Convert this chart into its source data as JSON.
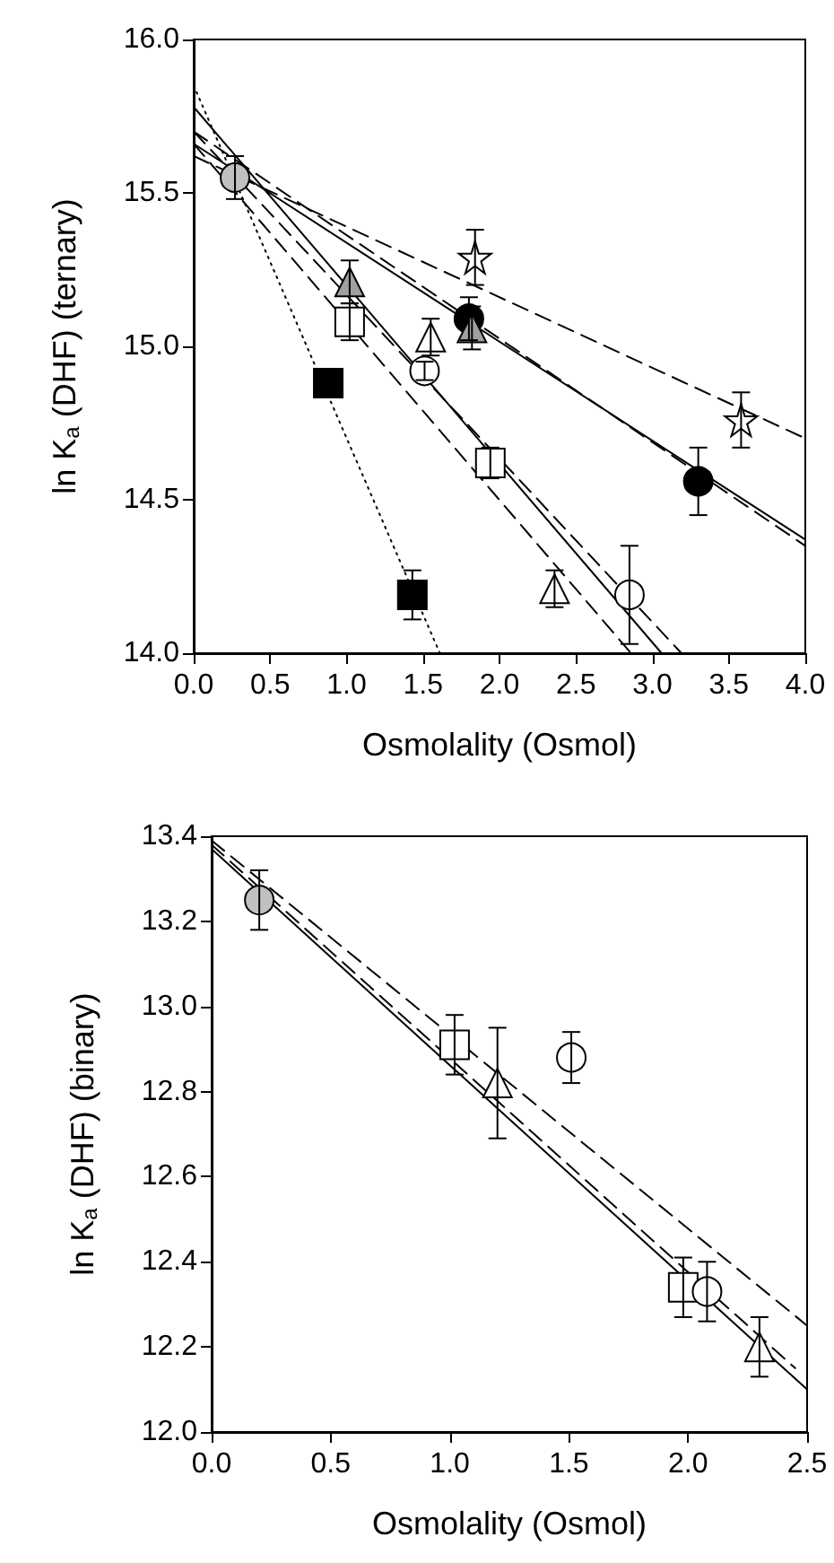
{
  "chart_data": [
    {
      "type": "scatter",
      "xlabel": "Osmolality (Osmol)",
      "ylabel": "ln K$_{a}$ (DHF) (ternary)",
      "xlim": [
        0,
        4
      ],
      "ylim": [
        14,
        16
      ],
      "xticks": [
        {
          "value": 0,
          "label": "0.0"
        },
        {
          "value": 0.5,
          "label": "0.5"
        },
        {
          "value": 1,
          "label": "1.0"
        },
        {
          "value": 1.5,
          "label": "1.5"
        },
        {
          "value": 2,
          "label": "2.0"
        },
        {
          "value": 2.5,
          "label": "2.5"
        },
        {
          "value": 3,
          "label": "3.0"
        },
        {
          "value": 3.5,
          "label": "3.5"
        },
        {
          "value": 4,
          "label": "4.0"
        }
      ],
      "yticks": [
        {
          "value": 14,
          "label": "14.0"
        },
        {
          "value": 14.5,
          "label": "14.5"
        },
        {
          "value": 15,
          "label": "15.0"
        },
        {
          "value": 15.5,
          "label": "15.5"
        },
        {
          "value": 16,
          "label": "16.0"
        }
      ],
      "grid": false,
      "series": [
        {
          "type": "line",
          "marker": "none",
          "line_style": "dotted",
          "color": "#000000",
          "x": [
            0,
            1.61
          ],
          "values": [
            15.85,
            14.0
          ]
        },
        {
          "type": "line",
          "marker": "none",
          "line_style": "dashed",
          "color": "#000000",
          "x": [
            0,
            4
          ],
          "values": [
            15.62,
            14.7
          ]
        },
        {
          "type": "line",
          "marker": "none",
          "line_style": "solid",
          "color": "#000000",
          "x": [
            0,
            4
          ],
          "values": [
            15.66,
            14.37
          ]
        },
        {
          "type": "line",
          "marker": "none",
          "line_style": "dashed",
          "color": "#000000",
          "x": [
            0,
            4
          ],
          "values": [
            15.7,
            14.35
          ]
        },
        {
          "type": "line",
          "marker": "none",
          "line_style": "solid",
          "color": "#000000",
          "x": [
            0,
            3.06
          ],
          "values": [
            15.78,
            14.0
          ]
        },
        {
          "type": "line",
          "marker": "none",
          "line_style": "dashed",
          "color": "#000000",
          "x": [
            0,
            2.86
          ],
          "values": [
            15.66,
            14.0
          ]
        },
        {
          "type": "line",
          "marker": "none",
          "line_style": "dashed",
          "color": "#000000",
          "x": [
            0,
            3.19
          ],
          "values": [
            15.7,
            14.0
          ]
        },
        {
          "marker": "square",
          "color": "#ffffff",
          "x": [
            1.02,
            1.94
          ],
          "values": [
            15.08,
            14.62
          ],
          "errors": [
            0.06,
            0.05
          ]
        },
        {
          "marker": "triangle",
          "color": "#ffffff",
          "x": [
            1.55,
            2.36
          ],
          "values": [
            15.03,
            14.21
          ],
          "errors": [
            0.06,
            0.06
          ]
        },
        {
          "marker": "circle",
          "color": "#ffffff",
          "x": [
            1.51,
            2.85
          ],
          "values": [
            14.92,
            14.19
          ],
          "errors": [
            0.03,
            0.16
          ]
        },
        {
          "marker": "square",
          "color": "#000000",
          "x": [
            0.88,
            1.43
          ],
          "values": [
            14.88,
            14.19
          ],
          "errors": [
            null,
            0.08
          ]
        },
        {
          "marker": "star",
          "color": "#ffffff",
          "x": [
            1.84,
            3.58
          ],
          "values": [
            15.29,
            14.76
          ],
          "errors": [
            0.09,
            0.09
          ]
        },
        {
          "marker": "circle",
          "color": "#000000",
          "x": [
            1.8,
            3.3
          ],
          "values": [
            15.09,
            14.56
          ],
          "errors": [
            0.07,
            0.11
          ]
        },
        {
          "marker": "triangle",
          "color": "#a0a0a0",
          "x": [
            1.02,
            1.82
          ],
          "values": [
            15.21,
            15.06
          ],
          "errors": [
            0.07,
            0.07
          ]
        },
        {
          "marker": "circle",
          "color": "#c0c0c0",
          "x": [
            0.27
          ],
          "values": [
            15.55
          ],
          "errors": [
            0.07
          ]
        }
      ]
    },
    {
      "type": "scatter",
      "xlabel": "Osmolality (Osmol)",
      "ylabel": "ln K$_{a}$ (DHF) (binary)",
      "xlim": [
        0,
        2.5
      ],
      "ylim": [
        12,
        13.4
      ],
      "xticks": [
        {
          "value": 0,
          "label": "0.0"
        },
        {
          "value": 0.5,
          "label": "0.5"
        },
        {
          "value": 1,
          "label": "1.0"
        },
        {
          "value": 1.5,
          "label": "1.5"
        },
        {
          "value": 2,
          "label": "2.0"
        },
        {
          "value": 2.5,
          "label": "2.5"
        }
      ],
      "yticks": [
        {
          "value": 12,
          "label": "12.0"
        },
        {
          "value": 12.2,
          "label": "12.2"
        },
        {
          "value": 12.4,
          "label": "12.4"
        },
        {
          "value": 12.6,
          "label": "12.6"
        },
        {
          "value": 12.8,
          "label": "12.8"
        },
        {
          "value": 13,
          "label": "13.0"
        },
        {
          "value": 13.2,
          "label": "13.2"
        },
        {
          "value": 13.4,
          "label": "13.4"
        }
      ],
      "grid": false,
      "series": [
        {
          "type": "line",
          "marker": "none",
          "line_style": "solid",
          "color": "#000000",
          "x": [
            0,
            2.5
          ],
          "values": [
            13.37,
            12.1
          ]
        },
        {
          "type": "line",
          "marker": "none",
          "line_style": "dashed",
          "color": "#000000",
          "x": [
            0,
            2.45
          ],
          "values": [
            13.38,
            12.15
          ]
        },
        {
          "type": "line",
          "marker": "none",
          "line_style": "dashed",
          "color": "#000000",
          "x": [
            0,
            2.5
          ],
          "values": [
            13.39,
            12.25
          ]
        },
        {
          "marker": "square",
          "color": "#ffffff",
          "x": [
            1.02,
            1.98
          ],
          "values": [
            12.91,
            12.34
          ],
          "errors": [
            0.07,
            0.07
          ]
        },
        {
          "marker": "triangle",
          "color": "#ffffff",
          "x": [
            1.2,
            2.3
          ],
          "values": [
            12.82,
            12.2
          ],
          "errors": [
            0.13,
            0.07
          ]
        },
        {
          "marker": "circle",
          "color": "#ffffff",
          "x": [
            1.51,
            2.08
          ],
          "values": [
            12.88,
            12.33
          ],
          "errors": [
            0.06,
            0.07
          ]
        },
        {
          "marker": "circle",
          "color": "#c0c0c0",
          "x": [
            0.2
          ],
          "values": [
            13.25
          ],
          "errors": [
            0.07
          ]
        }
      ]
    }
  ]
}
